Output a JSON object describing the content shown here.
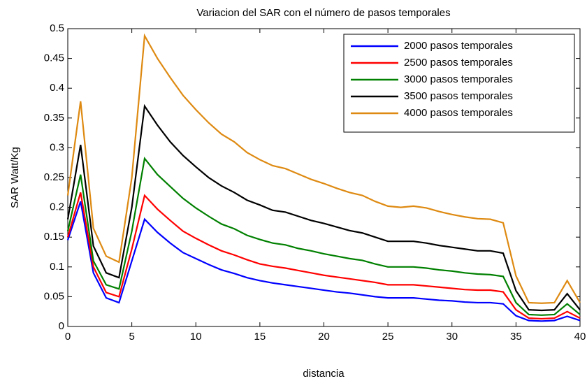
{
  "chart_data": {
    "type": "line",
    "title": "Variacion del SAR con el número de pasos temporales",
    "xlabel": "distancia",
    "ylabel": "SAR Watt/Kg",
    "x": [
      0,
      1,
      2,
      3,
      4,
      5,
      6,
      7,
      8,
      9,
      10,
      11,
      12,
      13,
      14,
      15,
      16,
      17,
      18,
      19,
      20,
      21,
      22,
      23,
      24,
      25,
      26,
      27,
      28,
      29,
      30,
      31,
      32,
      33,
      34,
      35,
      36,
      37,
      38,
      39,
      40
    ],
    "series": [
      {
        "name": "2000 pasos temporales",
        "color": "#0000ff",
        "values": [
          0.145,
          0.21,
          0.09,
          0.048,
          0.04,
          0.11,
          0.18,
          0.158,
          0.14,
          0.124,
          0.114,
          0.104,
          0.095,
          0.089,
          0.082,
          0.077,
          0.073,
          0.07,
          0.067,
          0.064,
          0.061,
          0.058,
          0.056,
          0.053,
          0.05,
          0.048,
          0.048,
          0.048,
          0.046,
          0.044,
          0.043,
          0.041,
          0.04,
          0.04,
          0.038,
          0.018,
          0.01,
          0.009,
          0.01,
          0.017,
          0.01
        ]
      },
      {
        "name": "2500 pasos temporales",
        "color": "#ff0000",
        "values": [
          0.15,
          0.225,
          0.1,
          0.057,
          0.05,
          0.13,
          0.22,
          0.197,
          0.178,
          0.16,
          0.148,
          0.137,
          0.127,
          0.12,
          0.112,
          0.105,
          0.101,
          0.098,
          0.094,
          0.09,
          0.086,
          0.083,
          0.08,
          0.077,
          0.074,
          0.07,
          0.07,
          0.07,
          0.068,
          0.066,
          0.064,
          0.062,
          0.061,
          0.061,
          0.058,
          0.028,
          0.014,
          0.013,
          0.014,
          0.025,
          0.014
        ]
      },
      {
        "name": "3000 pasos temporales",
        "color": "#008000",
        "values": [
          0.16,
          0.255,
          0.11,
          0.07,
          0.063,
          0.16,
          0.282,
          0.255,
          0.235,
          0.215,
          0.199,
          0.185,
          0.172,
          0.164,
          0.153,
          0.146,
          0.14,
          0.137,
          0.131,
          0.127,
          0.122,
          0.118,
          0.114,
          0.111,
          0.105,
          0.1,
          0.1,
          0.1,
          0.098,
          0.095,
          0.093,
          0.09,
          0.088,
          0.087,
          0.084,
          0.04,
          0.02,
          0.019,
          0.02,
          0.038,
          0.02
        ]
      },
      {
        "name": "3500 pasos temporales",
        "color": "#000000",
        "values": [
          0.18,
          0.305,
          0.135,
          0.09,
          0.082,
          0.2,
          0.37,
          0.338,
          0.31,
          0.287,
          0.268,
          0.25,
          0.236,
          0.225,
          0.212,
          0.204,
          0.195,
          0.192,
          0.185,
          0.178,
          0.173,
          0.167,
          0.161,
          0.157,
          0.15,
          0.143,
          0.143,
          0.143,
          0.14,
          0.136,
          0.133,
          0.13,
          0.127,
          0.127,
          0.123,
          0.06,
          0.028,
          0.027,
          0.028,
          0.055,
          0.028
        ]
      },
      {
        "name": "4000 pasos temporales",
        "color": "#de8a12",
        "values": [
          0.22,
          0.378,
          0.165,
          0.118,
          0.108,
          0.25,
          0.488,
          0.45,
          0.418,
          0.388,
          0.364,
          0.342,
          0.323,
          0.31,
          0.292,
          0.28,
          0.27,
          0.265,
          0.256,
          0.247,
          0.24,
          0.232,
          0.225,
          0.22,
          0.21,
          0.202,
          0.2,
          0.202,
          0.199,
          0.193,
          0.188,
          0.184,
          0.181,
          0.18,
          0.174,
          0.085,
          0.04,
          0.039,
          0.04,
          0.077,
          0.04
        ]
      }
    ],
    "xlim": [
      0,
      40
    ],
    "ylim": [
      0,
      0.5
    ],
    "xticks": [
      0,
      5,
      10,
      15,
      20,
      25,
      30,
      35,
      40
    ],
    "yticks": [
      0,
      0.05,
      0.1,
      0.15,
      0.2,
      0.25,
      0.3,
      0.35,
      0.4,
      0.45,
      0.5
    ],
    "legend": "upper right"
  }
}
